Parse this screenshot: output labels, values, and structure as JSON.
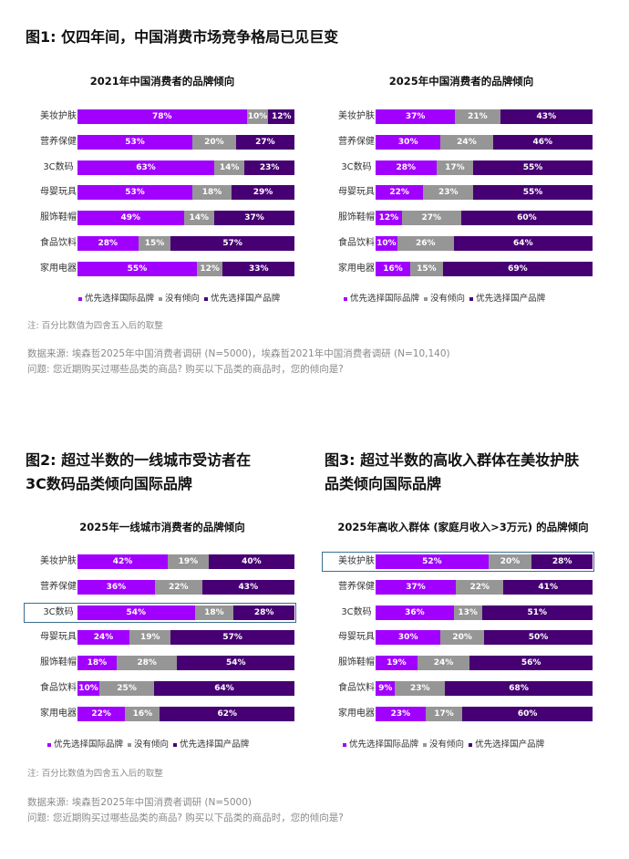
{
  "figures": [
    {
      "id": "fig1",
      "title": "图1: 仅四年间，中国消费市场竞争格局已见巨变"
    },
    {
      "id": "fig2",
      "title_lines": [
        "图2: 超过半数的一线城市受访者在",
        "3C数码品类倾向国际品牌"
      ]
    },
    {
      "id": "fig3",
      "title_lines": [
        "图3: 超过半数的高收入群体在美妆护肤",
        "品类倾向国际品牌"
      ]
    }
  ],
  "legend": {
    "international": "优先选择国际品牌",
    "neutral": "没有倾向",
    "domestic": "优先选择国产品牌"
  },
  "colors": {
    "international": "#a100ff",
    "neutral": "#969696",
    "domestic": "#460073",
    "highlight": "#3a6e8f"
  },
  "notes": {
    "rounding_top": "注: 百分比数值为四舍五入后的取整",
    "rounding_bottom": "注: 百分比数值为四舍五入后的取整"
  },
  "sources": {
    "top_line1": "数据来源: 埃森哲2025年中国消费者调研 (N=5000)，埃森哲2021年中国消费者调研 (N=10,140)",
    "top_line2": "问题: 您近期购买过哪些品类的商品? 购买以下品类的商品时，您的倾向是?",
    "bottom_line1": "数据来源: 埃森哲2025年中国消费者调研 (N=5000)",
    "bottom_line2": "问题: 您近期购买过哪些品类的商品? 购买以下品类的商品时，您的倾向是?"
  },
  "chart_data": [
    {
      "type": "bar",
      "stacked": true,
      "orientation": "horizontal",
      "title": "2021年中国消费者的品牌倾向",
      "categories": [
        "美妆护肤",
        "营养保健",
        "3C数码",
        "母婴玩具",
        "服饰鞋帽",
        "食品饮料",
        "家用电器"
      ],
      "series": [
        {
          "name": "优先选择国际品牌",
          "values": [
            78,
            53,
            63,
            53,
            49,
            28,
            55
          ]
        },
        {
          "name": "没有倾向",
          "values": [
            10,
            20,
            14,
            18,
            14,
            15,
            12
          ]
        },
        {
          "name": "优先选择国产品牌",
          "values": [
            12,
            27,
            23,
            29,
            37,
            57,
            33
          ]
        }
      ],
      "labels": [
        [
          "78%",
          "10%",
          "12%"
        ],
        [
          "53%",
          "20%",
          "27%"
        ],
        [
          "63%",
          "14%",
          "23%"
        ],
        [
          "53%",
          "18%",
          "29%"
        ],
        [
          "49%",
          "14%",
          "37%"
        ],
        [
          "28%",
          "15%",
          "57%"
        ],
        [
          "55%",
          "12%",
          "33%"
        ]
      ],
      "highlight": null,
      "legend_position": "bottom"
    },
    {
      "type": "bar",
      "stacked": true,
      "orientation": "horizontal",
      "title": "2025年中国消费者的品牌倾向",
      "categories": [
        "美妆护肤",
        "营养保健",
        "3C数码",
        "母婴玩具",
        "服饰鞋帽",
        "食品饮料",
        "家用电器"
      ],
      "series": [
        {
          "name": "优先选择国际品牌",
          "values": [
            37,
            30,
            28,
            22,
            12,
            10,
            16
          ]
        },
        {
          "name": "没有倾向",
          "values": [
            21,
            24,
            17,
            23,
            27,
            26,
            15
          ]
        },
        {
          "name": "优先选择国产品牌",
          "values": [
            43,
            46,
            55,
            55,
            60,
            64,
            69
          ]
        }
      ],
      "labels": [
        [
          "37%",
          "21%",
          "43%"
        ],
        [
          "30%",
          "24%",
          "46%"
        ],
        [
          "28%",
          "17%",
          "55%"
        ],
        [
          "22%",
          "23%",
          "55%"
        ],
        [
          "12%",
          "27%",
          "60%"
        ],
        [
          "10%",
          "26%",
          "64%"
        ],
        [
          "16%",
          "15%",
          "69%"
        ]
      ],
      "highlight": null,
      "legend_position": "bottom"
    },
    {
      "type": "bar",
      "stacked": true,
      "orientation": "horizontal",
      "title": "2025年一线城市消费者的品牌倾向",
      "categories": [
        "美妆护肤",
        "营养保健",
        "3C数码",
        "母婴玩具",
        "服饰鞋帽",
        "食品饮料",
        "家用电器"
      ],
      "series": [
        {
          "name": "优先选择国际品牌",
          "values": [
            42,
            36,
            54,
            24,
            18,
            10,
            22
          ]
        },
        {
          "name": "没有倾向",
          "values": [
            19,
            22,
            18,
            19,
            28,
            25,
            16
          ]
        },
        {
          "name": "优先选择国产品牌",
          "values": [
            40,
            43,
            28,
            57,
            54,
            64,
            62
          ]
        }
      ],
      "labels": [
        [
          "42%",
          "19%",
          "40%"
        ],
        [
          "36%",
          "22%",
          "43%"
        ],
        [
          "54%",
          "18%",
          "28%"
        ],
        [
          "24%",
          "19%",
          "57%"
        ],
        [
          "18%",
          "28%",
          "54%"
        ],
        [
          "10%",
          "25%",
          "64%"
        ],
        [
          "22%",
          "16%",
          "62%"
        ]
      ],
      "highlight": "3C数码",
      "legend_position": "bottom"
    },
    {
      "type": "bar",
      "stacked": true,
      "orientation": "horizontal",
      "title": "2025年高收入群体 (家庭月收入>3万元) 的品牌倾向",
      "categories": [
        "美妆护肤",
        "营养保健",
        "3C数码",
        "母婴玩具",
        "服饰鞋帽",
        "食品饮料",
        "家用电器"
      ],
      "series": [
        {
          "name": "优先选择国际品牌",
          "values": [
            52,
            37,
            36,
            30,
            19,
            9,
            23
          ]
        },
        {
          "name": "没有倾向",
          "values": [
            20,
            22,
            13,
            20,
            24,
            23,
            17
          ]
        },
        {
          "name": "优先选择国产品牌",
          "values": [
            28,
            41,
            51,
            50,
            56,
            68,
            60
          ]
        }
      ],
      "labels": [
        [
          "52%",
          "20%",
          "28%"
        ],
        [
          "37%",
          "22%",
          "41%"
        ],
        [
          "36%",
          "13%",
          "51%"
        ],
        [
          "30%",
          "20%",
          "50%"
        ],
        [
          "19%",
          "24%",
          "56%"
        ],
        [
          "9%",
          "23%",
          "68%"
        ],
        [
          "23%",
          "17%",
          "60%"
        ]
      ],
      "highlight": "美妆护肤",
      "legend_position": "bottom"
    }
  ]
}
